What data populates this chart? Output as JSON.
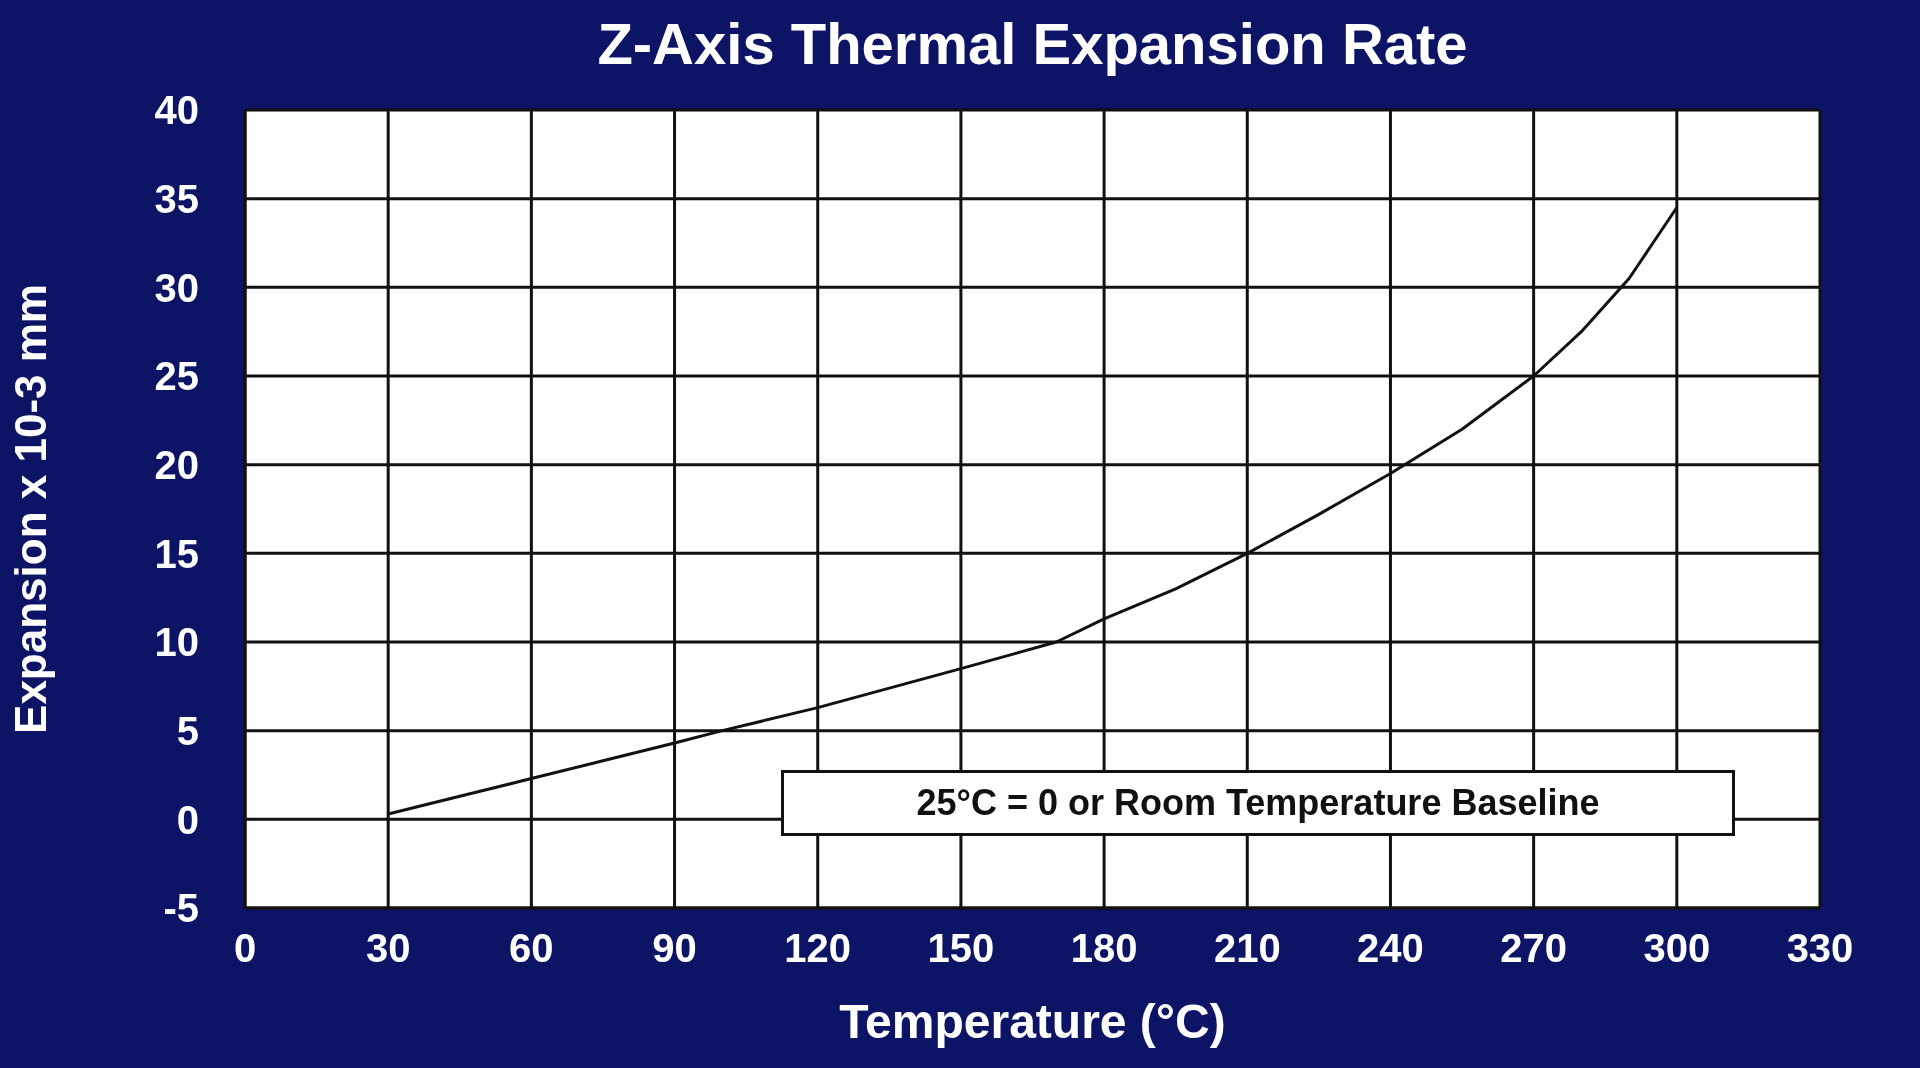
{
  "chart_data": {
    "type": "line",
    "title": "Z-Axis Thermal Expansion Rate",
    "xlabel": "Temperature (°C)",
    "ylabel": "Expansion x 10-3 mm",
    "annotations": [
      "25°C = 0 or Room Temperature Baseline"
    ],
    "x": [
      30,
      45,
      60,
      75,
      90,
      100,
      120,
      135,
      150,
      170,
      180,
      195,
      210,
      225,
      240,
      255,
      270,
      280,
      290,
      295,
      300
    ],
    "series": [
      {
        "color": "#111111",
        "values": [
          0.3,
          1.3,
          2.3,
          3.3,
          4.3,
          5,
          6.3,
          7.4,
          8.5,
          10,
          11.3,
          13,
          15,
          17.2,
          19.5,
          22,
          25,
          27.5,
          30.5,
          32.5,
          34.5
        ]
      }
    ],
    "xlim": [
      0,
      330
    ],
    "xticks": [
      0,
      30,
      60,
      90,
      120,
      150,
      180,
      210,
      240,
      270,
      300,
      330
    ],
    "ylim": [
      -5,
      40
    ],
    "yticks": [
      -5,
      0,
      5,
      10,
      15,
      20,
      25,
      30,
      35,
      40
    ],
    "grid": true,
    "legend": false,
    "marker": "none",
    "line_style": "solid"
  }
}
